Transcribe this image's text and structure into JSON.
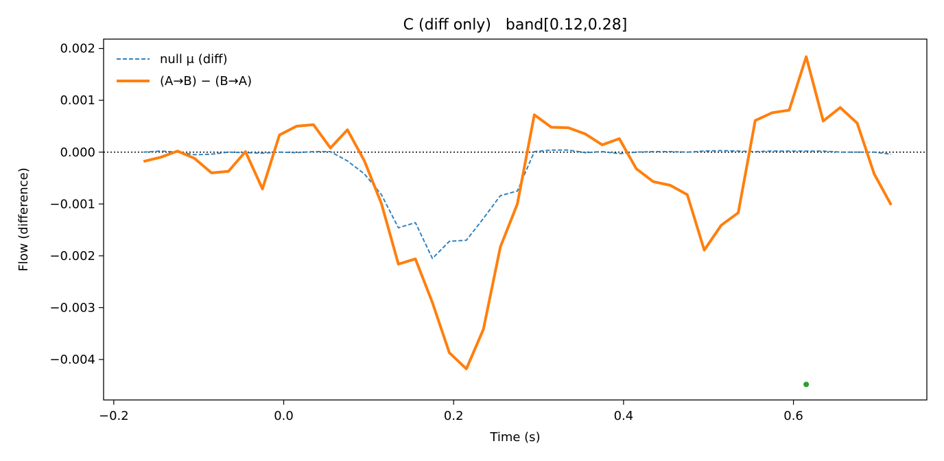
{
  "chart_data": {
    "type": "line",
    "title": "C (diff only)   band[0.12,0.28]",
    "xlabel": "Time (s)",
    "ylabel": "Flow (difference)",
    "xlim": [
      -0.212,
      0.757
    ],
    "ylim": [
      -0.00478,
      0.00218
    ],
    "xticks": [
      -0.2,
      0.0,
      0.2,
      0.4,
      0.6
    ],
    "xtick_labels": [
      "−0.2",
      "0.0",
      "0.2",
      "0.4",
      "0.6"
    ],
    "yticks": [
      0.002,
      0.001,
      0.0,
      -0.001,
      -0.002,
      -0.003,
      -0.004
    ],
    "ytick_labels": [
      "0.002",
      "0.001",
      "0.000",
      "−0.001",
      "−0.002",
      "−0.003",
      "−0.004"
    ],
    "grid": false,
    "legend_position": "top-left",
    "zero_line": {
      "y": 0,
      "style": "dotted",
      "color": "#000000"
    },
    "x": [
      -0.165,
      -0.145,
      -0.125,
      -0.105,
      -0.085,
      -0.065,
      -0.045,
      -0.025,
      -0.005,
      0.015,
      0.035,
      0.055,
      0.075,
      0.095,
      0.115,
      0.135,
      0.155,
      0.175,
      0.195,
      0.215,
      0.235,
      0.255,
      0.275,
      0.295,
      0.315,
      0.335,
      0.355,
      0.375,
      0.395,
      0.415,
      0.435,
      0.455,
      0.475,
      0.495,
      0.515,
      0.535,
      0.555,
      0.575,
      0.595,
      0.615,
      0.635,
      0.655,
      0.675,
      0.695,
      0.715
    ],
    "series": [
      {
        "name": "null μ (diff)",
        "color": "#3182bd",
        "style": "dashed",
        "values": [
          0.0,
          2e-05,
          0.0,
          -5e-05,
          -4e-05,
          0.0,
          -1e-05,
          -2e-05,
          0.0,
          -1e-05,
          1e-05,
          1e-05,
          -0.00017,
          -0.00042,
          -0.00082,
          -0.00146,
          -0.00136,
          -0.00205,
          -0.00172,
          -0.0017,
          -0.00128,
          -0.00084,
          -0.00075,
          1e-05,
          4e-05,
          4e-05,
          -1e-05,
          1e-05,
          -3e-05,
          0.0,
          1e-05,
          1e-05,
          0.0,
          2e-05,
          3e-05,
          2e-05,
          1e-05,
          2e-05,
          2e-05,
          2e-05,
          2e-05,
          0.0,
          0.0,
          0.0,
          -4e-05
        ]
      },
      {
        "name": "(A→B) − (B→A)",
        "color": "#ff7f0e",
        "style": "solid",
        "values": [
          -0.00018,
          -0.0001,
          2e-05,
          -0.00012,
          -0.0004,
          -0.00037,
          1e-05,
          -0.00071,
          0.00033,
          0.0005,
          0.00053,
          8e-05,
          0.00043,
          -0.00017,
          -0.00099,
          -0.00216,
          -0.00206,
          -0.0029,
          -0.00387,
          -0.00418,
          -0.00342,
          -0.00183,
          -0.001,
          0.00072,
          0.00048,
          0.00047,
          0.00035,
          0.00014,
          0.00026,
          -0.00032,
          -0.00057,
          -0.00064,
          -0.00082,
          -0.00189,
          -0.00141,
          -0.00117,
          0.00061,
          0.00076,
          0.00081,
          0.00184,
          0.0006,
          0.00086,
          0.00056,
          -0.00042,
          -0.00102
        ]
      }
    ],
    "markers": [
      {
        "x": 0.615,
        "y": -0.00448,
        "color": "#2ca02c"
      }
    ]
  }
}
